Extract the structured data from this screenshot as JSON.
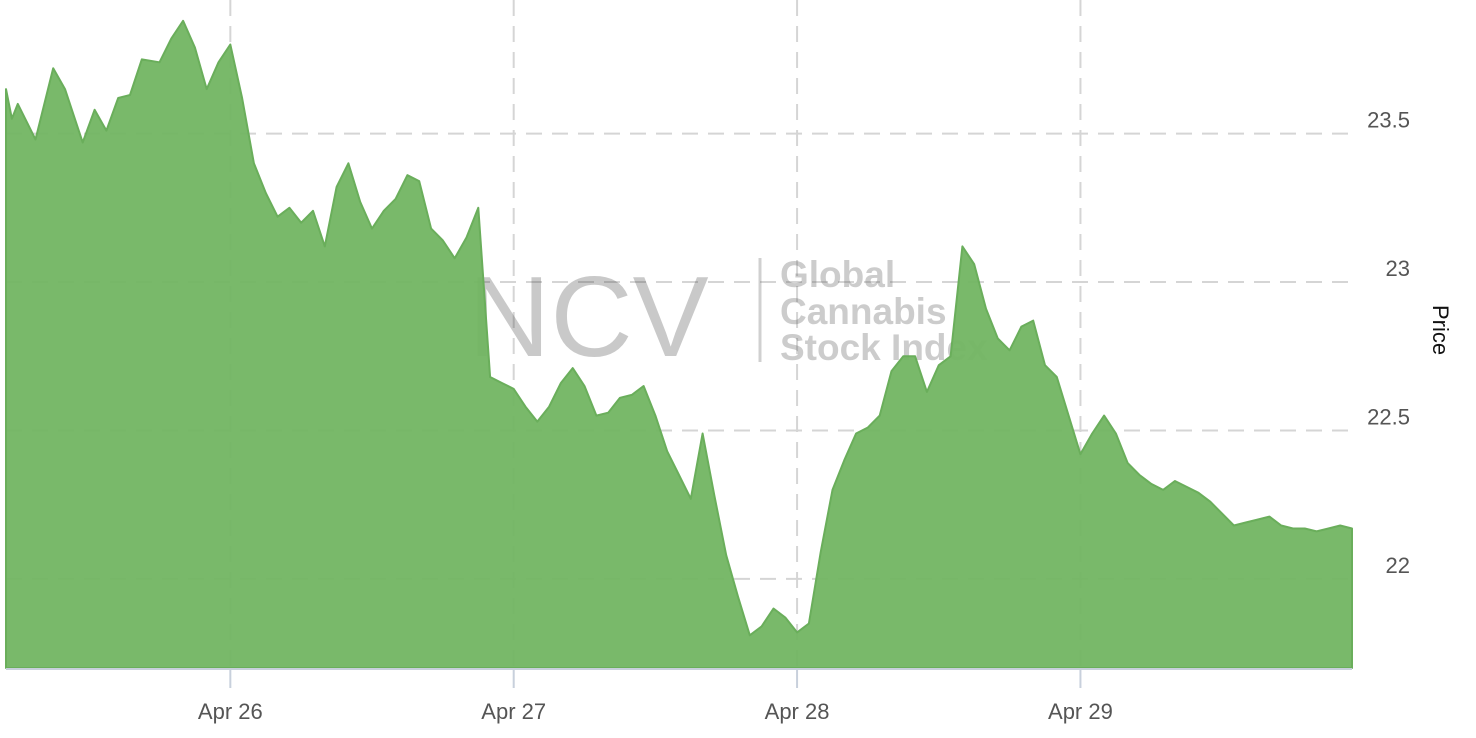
{
  "chart_data": {
    "type": "area",
    "title": "",
    "xlabel": "",
    "ylabel": "Price",
    "ylim": [
      21.7,
      23.95
    ],
    "y_ticks": [
      22,
      22.5,
      23,
      23.5
    ],
    "x_ticks": [
      "Apr 26",
      "Apr 27",
      "Apr 28",
      "Apr 29"
    ],
    "x_range": [
      "Apr 25 05:00",
      "Apr 29 23:00"
    ],
    "grid": true,
    "y_axis_side": "right",
    "fill_color": "#72b562",
    "stroke_color": "#6aae5b",
    "watermark": {
      "logo": "NCV",
      "text_lines": [
        "Global",
        "Cannabis",
        "Stock Index"
      ]
    },
    "series": [
      {
        "x": [
          "Apr 25 05:00",
          "Apr 25 05:30",
          "Apr 25 06:00",
          "Apr 25 07:30",
          "Apr 25 09:00",
          "Apr 25 10:00",
          "Apr 25 11:30",
          "Apr 25 12:30",
          "Apr 25 13:30",
          "Apr 25 14:30",
          "Apr 25 15:30",
          "Apr 25 16:30",
          "Apr 25 18:00",
          "Apr 25 19:00",
          "Apr 25 20:00",
          "Apr 25 21:00",
          "Apr 25 22:00",
          "Apr 25 23:00",
          "Apr 26 00:00",
          "Apr 26 01:00",
          "Apr 26 02:00",
          "Apr 26 03:00",
          "Apr 26 04:00",
          "Apr 26 05:00",
          "Apr 26 06:00",
          "Apr 26 07:00",
          "Apr 26 08:00",
          "Apr 26 09:00",
          "Apr 26 10:00",
          "Apr 26 11:00",
          "Apr 26 12:00",
          "Apr 26 13:00",
          "Apr 26 14:00",
          "Apr 26 15:00",
          "Apr 26 16:00",
          "Apr 26 17:00",
          "Apr 26 18:00",
          "Apr 26 19:00",
          "Apr 26 20:00",
          "Apr 26 21:00",
          "Apr 26 22:00",
          "Apr 26 23:00",
          "Apr 27 00:00",
          "Apr 27 01:00",
          "Apr 27 02:00",
          "Apr 27 03:00",
          "Apr 27 04:00",
          "Apr 27 05:00",
          "Apr 27 06:00",
          "Apr 27 07:00",
          "Apr 27 08:00",
          "Apr 27 09:00",
          "Apr 27 10:00",
          "Apr 27 11:00",
          "Apr 27 12:00",
          "Apr 27 13:00",
          "Apr 27 14:00",
          "Apr 27 15:00",
          "Apr 27 16:00",
          "Apr 27 17:00",
          "Apr 27 18:00",
          "Apr 27 19:00",
          "Apr 27 20:00",
          "Apr 27 21:00",
          "Apr 27 22:00",
          "Apr 27 23:00",
          "Apr 28 00:00",
          "Apr 28 01:00",
          "Apr 28 02:00",
          "Apr 28 03:00",
          "Apr 28 04:00",
          "Apr 28 05:00",
          "Apr 28 06:00",
          "Apr 28 07:00",
          "Apr 28 08:00",
          "Apr 28 09:00",
          "Apr 28 10:00",
          "Apr 28 11:00",
          "Apr 28 12:00",
          "Apr 28 13:00",
          "Apr 28 14:00",
          "Apr 28 15:00",
          "Apr 28 16:00",
          "Apr 28 17:00",
          "Apr 28 18:00",
          "Apr 28 19:00",
          "Apr 28 20:00",
          "Apr 28 21:00",
          "Apr 28 22:00",
          "Apr 28 23:00",
          "Apr 29 00:00",
          "Apr 29 01:00",
          "Apr 29 02:00",
          "Apr 29 03:00",
          "Apr 29 04:00",
          "Apr 29 05:00",
          "Apr 29 06:00",
          "Apr 29 07:00",
          "Apr 29 08:00",
          "Apr 29 09:00",
          "Apr 29 10:00",
          "Apr 29 11:00",
          "Apr 29 12:00",
          "Apr 29 13:00",
          "Apr 29 14:00",
          "Apr 29 15:00",
          "Apr 29 16:00",
          "Apr 29 17:00",
          "Apr 29 18:00",
          "Apr 29 19:00",
          "Apr 29 20:00",
          "Apr 29 21:00",
          "Apr 29 22:00",
          "Apr 29 23:00"
        ],
        "values": [
          23.65,
          23.55,
          23.6,
          23.48,
          23.72,
          23.65,
          23.47,
          23.58,
          23.51,
          23.62,
          23.63,
          23.75,
          23.74,
          23.82,
          23.88,
          23.79,
          23.65,
          23.74,
          23.8,
          23.62,
          23.4,
          23.3,
          23.22,
          23.25,
          23.2,
          23.24,
          23.12,
          23.32,
          23.4,
          23.27,
          23.18,
          23.24,
          23.28,
          23.36,
          23.34,
          23.18,
          23.14,
          23.08,
          23.15,
          23.25,
          22.68,
          22.66,
          22.64,
          22.58,
          22.53,
          22.58,
          22.66,
          22.71,
          22.65,
          22.55,
          22.56,
          22.61,
          22.62,
          22.65,
          22.55,
          22.43,
          22.35,
          22.27,
          22.49,
          22.28,
          22.08,
          21.94,
          21.81,
          21.84,
          21.9,
          21.87,
          21.82,
          21.85,
          22.09,
          22.3,
          22.4,
          22.49,
          22.51,
          22.55,
          22.7,
          22.75,
          22.75,
          22.63,
          22.72,
          22.75,
          23.12,
          23.06,
          22.91,
          22.81,
          22.77,
          22.85,
          22.87,
          22.72,
          22.68,
          22.55,
          22.42,
          22.49,
          22.55,
          22.49,
          22.39,
          22.35,
          22.32,
          22.3,
          22.33,
          22.31,
          22.29,
          22.26,
          22.22,
          22.18,
          22.19,
          22.2,
          22.21,
          22.18,
          22.17,
          22.17,
          22.16,
          22.17,
          22.18,
          22.17
        ]
      }
    ]
  }
}
